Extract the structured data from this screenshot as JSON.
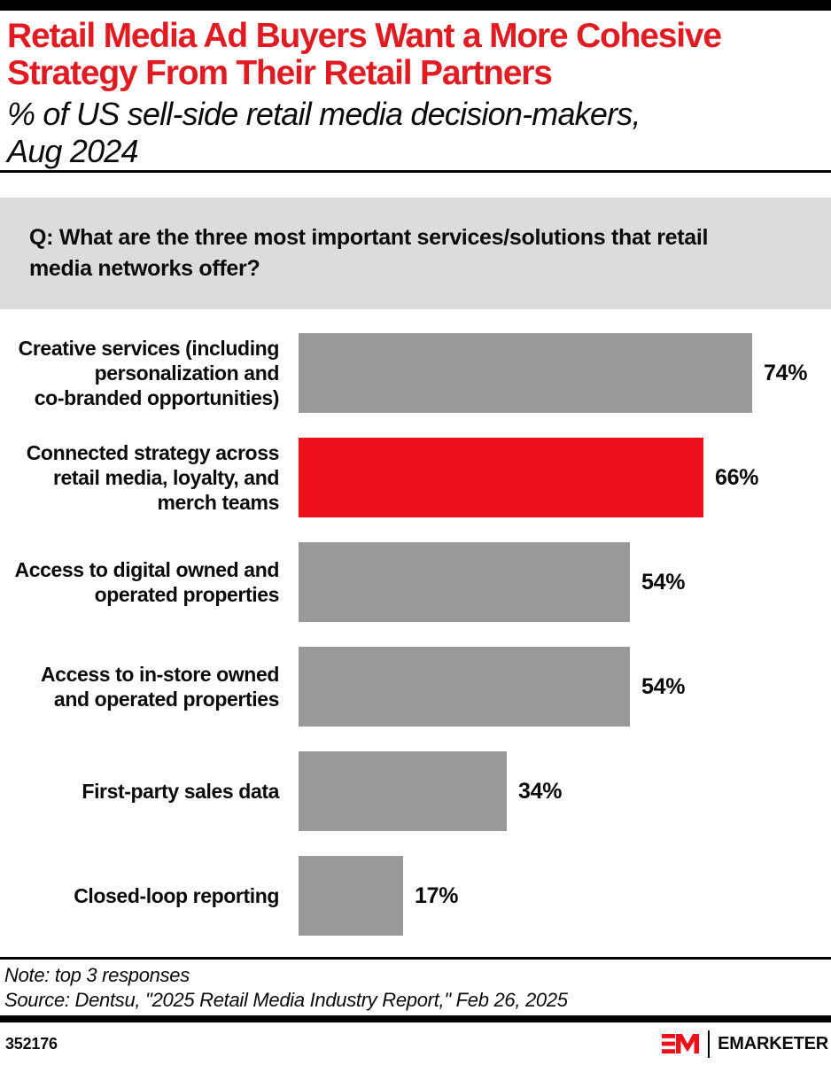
{
  "header": {
    "title_lines": [
      "Retail Media Ad Buyers Want a More Cohesive",
      "Strategy From Their Retail Partners"
    ],
    "subtitle_lines": [
      "% of US sell-side retail media decision-makers,",
      "Aug 2024"
    ],
    "title_color": "#E01B22"
  },
  "question": {
    "lines": [
      "Q: What are the three most important services/solutions that retail",
      "media networks offer?"
    ],
    "bg_color": "#DCDCDC"
  },
  "chart_data": {
    "type": "bar",
    "orientation": "horizontal",
    "title": "Retail Media Ad Buyers Want a More Cohesive Strategy From Their Retail Partners",
    "subtitle": "% of US sell-side retail media decision-makers, Aug 2024",
    "question": "Q: What are the three most important services/solutions that retail media networks offer?",
    "unit": "%",
    "xlim": [
      0,
      100
    ],
    "axes_hidden": true,
    "grid": false,
    "legend": false,
    "categories": [
      "Creative services (including personalization and co-branded opportunities)",
      "Connected strategy across retail media, loyalty, and merch teams",
      "Access to digital owned and operated properties",
      "Access to in-store owned and operated properties",
      "First-party sales data",
      "Closed-loop reporting"
    ],
    "label_lines": [
      [
        "Creative services (including",
        "personalization and",
        "co-branded opportunities)"
      ],
      [
        "Connected strategy across",
        "retail media, loyalty, and",
        "merch teams"
      ],
      [
        "Access to digital owned and",
        "operated properties"
      ],
      [
        "Access to in-store owned",
        "and operated properties"
      ],
      [
        "First-party sales data"
      ],
      [
        "Closed-loop reporting"
      ]
    ],
    "values": [
      74,
      66,
      54,
      54,
      34,
      17
    ],
    "value_labels": [
      "74%",
      "66%",
      "54%",
      "54%",
      "34%",
      "17%"
    ],
    "highlight_index": 1,
    "colors": {
      "bar": "#999999",
      "highlight": "#EC111A"
    }
  },
  "footer": {
    "note": "Note: top 3 responses",
    "source": "Source: Dentsu, \"2025 Retail Media Industry Report,\" Feb 26, 2025",
    "chart_id": "352176",
    "brand_name": "EMARKETER",
    "brand_red": "#EC111A"
  }
}
